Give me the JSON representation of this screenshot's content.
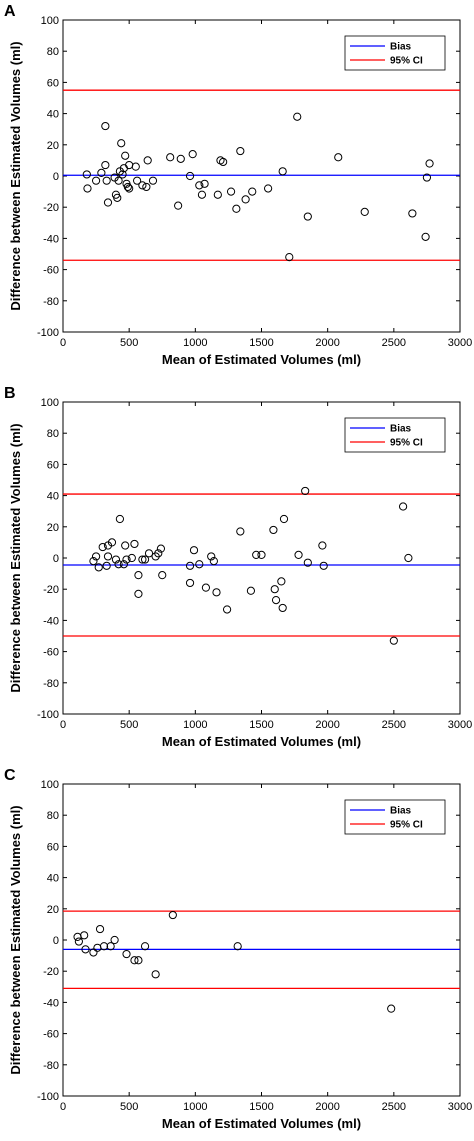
{
  "colors": {
    "bias": "#0000ff",
    "ci": "#ff0000",
    "axis": "#000000",
    "marker": "#000000"
  },
  "chart_data": [
    {
      "type": "scatter",
      "panel": "A",
      "xlabel": "Mean of Estimated Volumes (ml)",
      "ylabel": "Difference between Estimated Volumes (ml)",
      "xlim": [
        0,
        3000
      ],
      "ylim": [
        -100,
        100
      ],
      "xticks": [
        "0",
        "500",
        "1000",
        "1500",
        "2000",
        "2500",
        "3000"
      ],
      "yticks": [
        "-100",
        "-80",
        "-60",
        "-40",
        "-20",
        "0",
        "20",
        "40",
        "60",
        "80",
        "100"
      ],
      "grid": false,
      "legend": {
        "placement": "top-right",
        "entries": [
          "Bias",
          "95% CI"
        ]
      },
      "bias": 0.5,
      "ci": [
        55,
        -54
      ],
      "points": [
        [
          180,
          1
        ],
        [
          185,
          -8
        ],
        [
          250,
          -3
        ],
        [
          290,
          2
        ],
        [
          320,
          32
        ],
        [
          320,
          7
        ],
        [
          330,
          -3
        ],
        [
          340,
          -17
        ],
        [
          390,
          -1
        ],
        [
          400,
          -12
        ],
        [
          410,
          -14
        ],
        [
          420,
          -3
        ],
        [
          430,
          3
        ],
        [
          440,
          21
        ],
        [
          450,
          1
        ],
        [
          460,
          5
        ],
        [
          470,
          13
        ],
        [
          480,
          -5
        ],
        [
          490,
          -7
        ],
        [
          500,
          -8
        ],
        [
          500,
          7
        ],
        [
          550,
          6
        ],
        [
          560,
          -3
        ],
        [
          600,
          -6
        ],
        [
          630,
          -7
        ],
        [
          640,
          10
        ],
        [
          680,
          -3
        ],
        [
          810,
          12
        ],
        [
          870,
          -19
        ],
        [
          890,
          11
        ],
        [
          960,
          0
        ],
        [
          980,
          14
        ],
        [
          1030,
          -6
        ],
        [
          1050,
          -12
        ],
        [
          1070,
          -5
        ],
        [
          1170,
          -12
        ],
        [
          1190,
          10
        ],
        [
          1210,
          9
        ],
        [
          1270,
          -10
        ],
        [
          1310,
          -21
        ],
        [
          1340,
          16
        ],
        [
          1380,
          -15
        ],
        [
          1430,
          -10
        ],
        [
          1550,
          -8
        ],
        [
          1660,
          3
        ],
        [
          1710,
          -52
        ],
        [
          1770,
          38
        ],
        [
          1850,
          -26
        ],
        [
          2080,
          12
        ],
        [
          2280,
          -23
        ],
        [
          2640,
          -24
        ],
        [
          2740,
          -39
        ],
        [
          2750,
          -1
        ],
        [
          2770,
          8
        ]
      ]
    },
    {
      "type": "scatter",
      "panel": "B",
      "xlabel": "Mean of Estimated Volumes (ml)",
      "ylabel": "Difference between Estimated Volumes (ml)",
      "xlim": [
        0,
        3000
      ],
      "ylim": [
        -100,
        100
      ],
      "xticks": [
        "0",
        "500",
        "1000",
        "1500",
        "2000",
        "2500",
        "3000"
      ],
      "yticks": [
        "-100",
        "-80",
        "-60",
        "-40",
        "-20",
        "0",
        "20",
        "40",
        "60",
        "80",
        "100"
      ],
      "grid": false,
      "legend": {
        "placement": "top-right",
        "entries": [
          "Bias",
          "95% CI"
        ]
      },
      "bias": -4.5,
      "ci": [
        41,
        -50
      ],
      "points": [
        [
          230,
          -2
        ],
        [
          250,
          1
        ],
        [
          270,
          -6
        ],
        [
          300,
          7
        ],
        [
          330,
          -5
        ],
        [
          340,
          1
        ],
        [
          340,
          8
        ],
        [
          370,
          10
        ],
        [
          400,
          -1
        ],
        [
          420,
          -4
        ],
        [
          430,
          25
        ],
        [
          460,
          -4
        ],
        [
          470,
          8
        ],
        [
          480,
          -1
        ],
        [
          520,
          0
        ],
        [
          540,
          9
        ],
        [
          570,
          -11
        ],
        [
          570,
          -23
        ],
        [
          600,
          -1
        ],
        [
          620,
          -1
        ],
        [
          650,
          3
        ],
        [
          700,
          1
        ],
        [
          720,
          3
        ],
        [
          740,
          6
        ],
        [
          750,
          -11
        ],
        [
          960,
          -5
        ],
        [
          960,
          -16
        ],
        [
          990,
          5
        ],
        [
          1030,
          -4
        ],
        [
          1080,
          -19
        ],
        [
          1120,
          1
        ],
        [
          1140,
          -2
        ],
        [
          1160,
          -22
        ],
        [
          1240,
          -33
        ],
        [
          1340,
          17
        ],
        [
          1420,
          -21
        ],
        [
          1460,
          2
        ],
        [
          1500,
          2
        ],
        [
          1590,
          18
        ],
        [
          1600,
          -20
        ],
        [
          1610,
          -27
        ],
        [
          1650,
          -15
        ],
        [
          1660,
          -32
        ],
        [
          1670,
          25
        ],
        [
          1780,
          2
        ],
        [
          1830,
          43
        ],
        [
          1850,
          -3
        ],
        [
          1960,
          8
        ],
        [
          1970,
          -5
        ],
        [
          2500,
          -53
        ],
        [
          2570,
          33
        ],
        [
          2610,
          0
        ]
      ]
    },
    {
      "type": "scatter",
      "panel": "C",
      "xlabel": "Mean of Estimated Volumes (ml)",
      "ylabel": "Difference between Estimated Volumes (ml)",
      "xlim": [
        0,
        3000
      ],
      "ylim": [
        -100,
        100
      ],
      "xticks": [
        "0",
        "500",
        "1000",
        "1500",
        "2000",
        "2500",
        "3000"
      ],
      "yticks": [
        "-100",
        "-80",
        "-60",
        "-40",
        "-20",
        "0",
        "20",
        "40",
        "60",
        "80",
        "100"
      ],
      "grid": false,
      "legend": {
        "placement": "top-right",
        "entries": [
          "Bias",
          "95% CI"
        ]
      },
      "bias": -6,
      "ci": [
        18.5,
        -31
      ],
      "points": [
        [
          110,
          2
        ],
        [
          120,
          -1
        ],
        [
          160,
          3
        ],
        [
          170,
          -6
        ],
        [
          230,
          -8
        ],
        [
          260,
          -5
        ],
        [
          280,
          7
        ],
        [
          310,
          -4
        ],
        [
          360,
          -4
        ],
        [
          390,
          0
        ],
        [
          480,
          -9
        ],
        [
          540,
          -13
        ],
        [
          570,
          -13
        ],
        [
          620,
          -4
        ],
        [
          700,
          -22
        ],
        [
          830,
          16
        ],
        [
          1320,
          -4
        ],
        [
          2480,
          -44
        ]
      ]
    }
  ]
}
